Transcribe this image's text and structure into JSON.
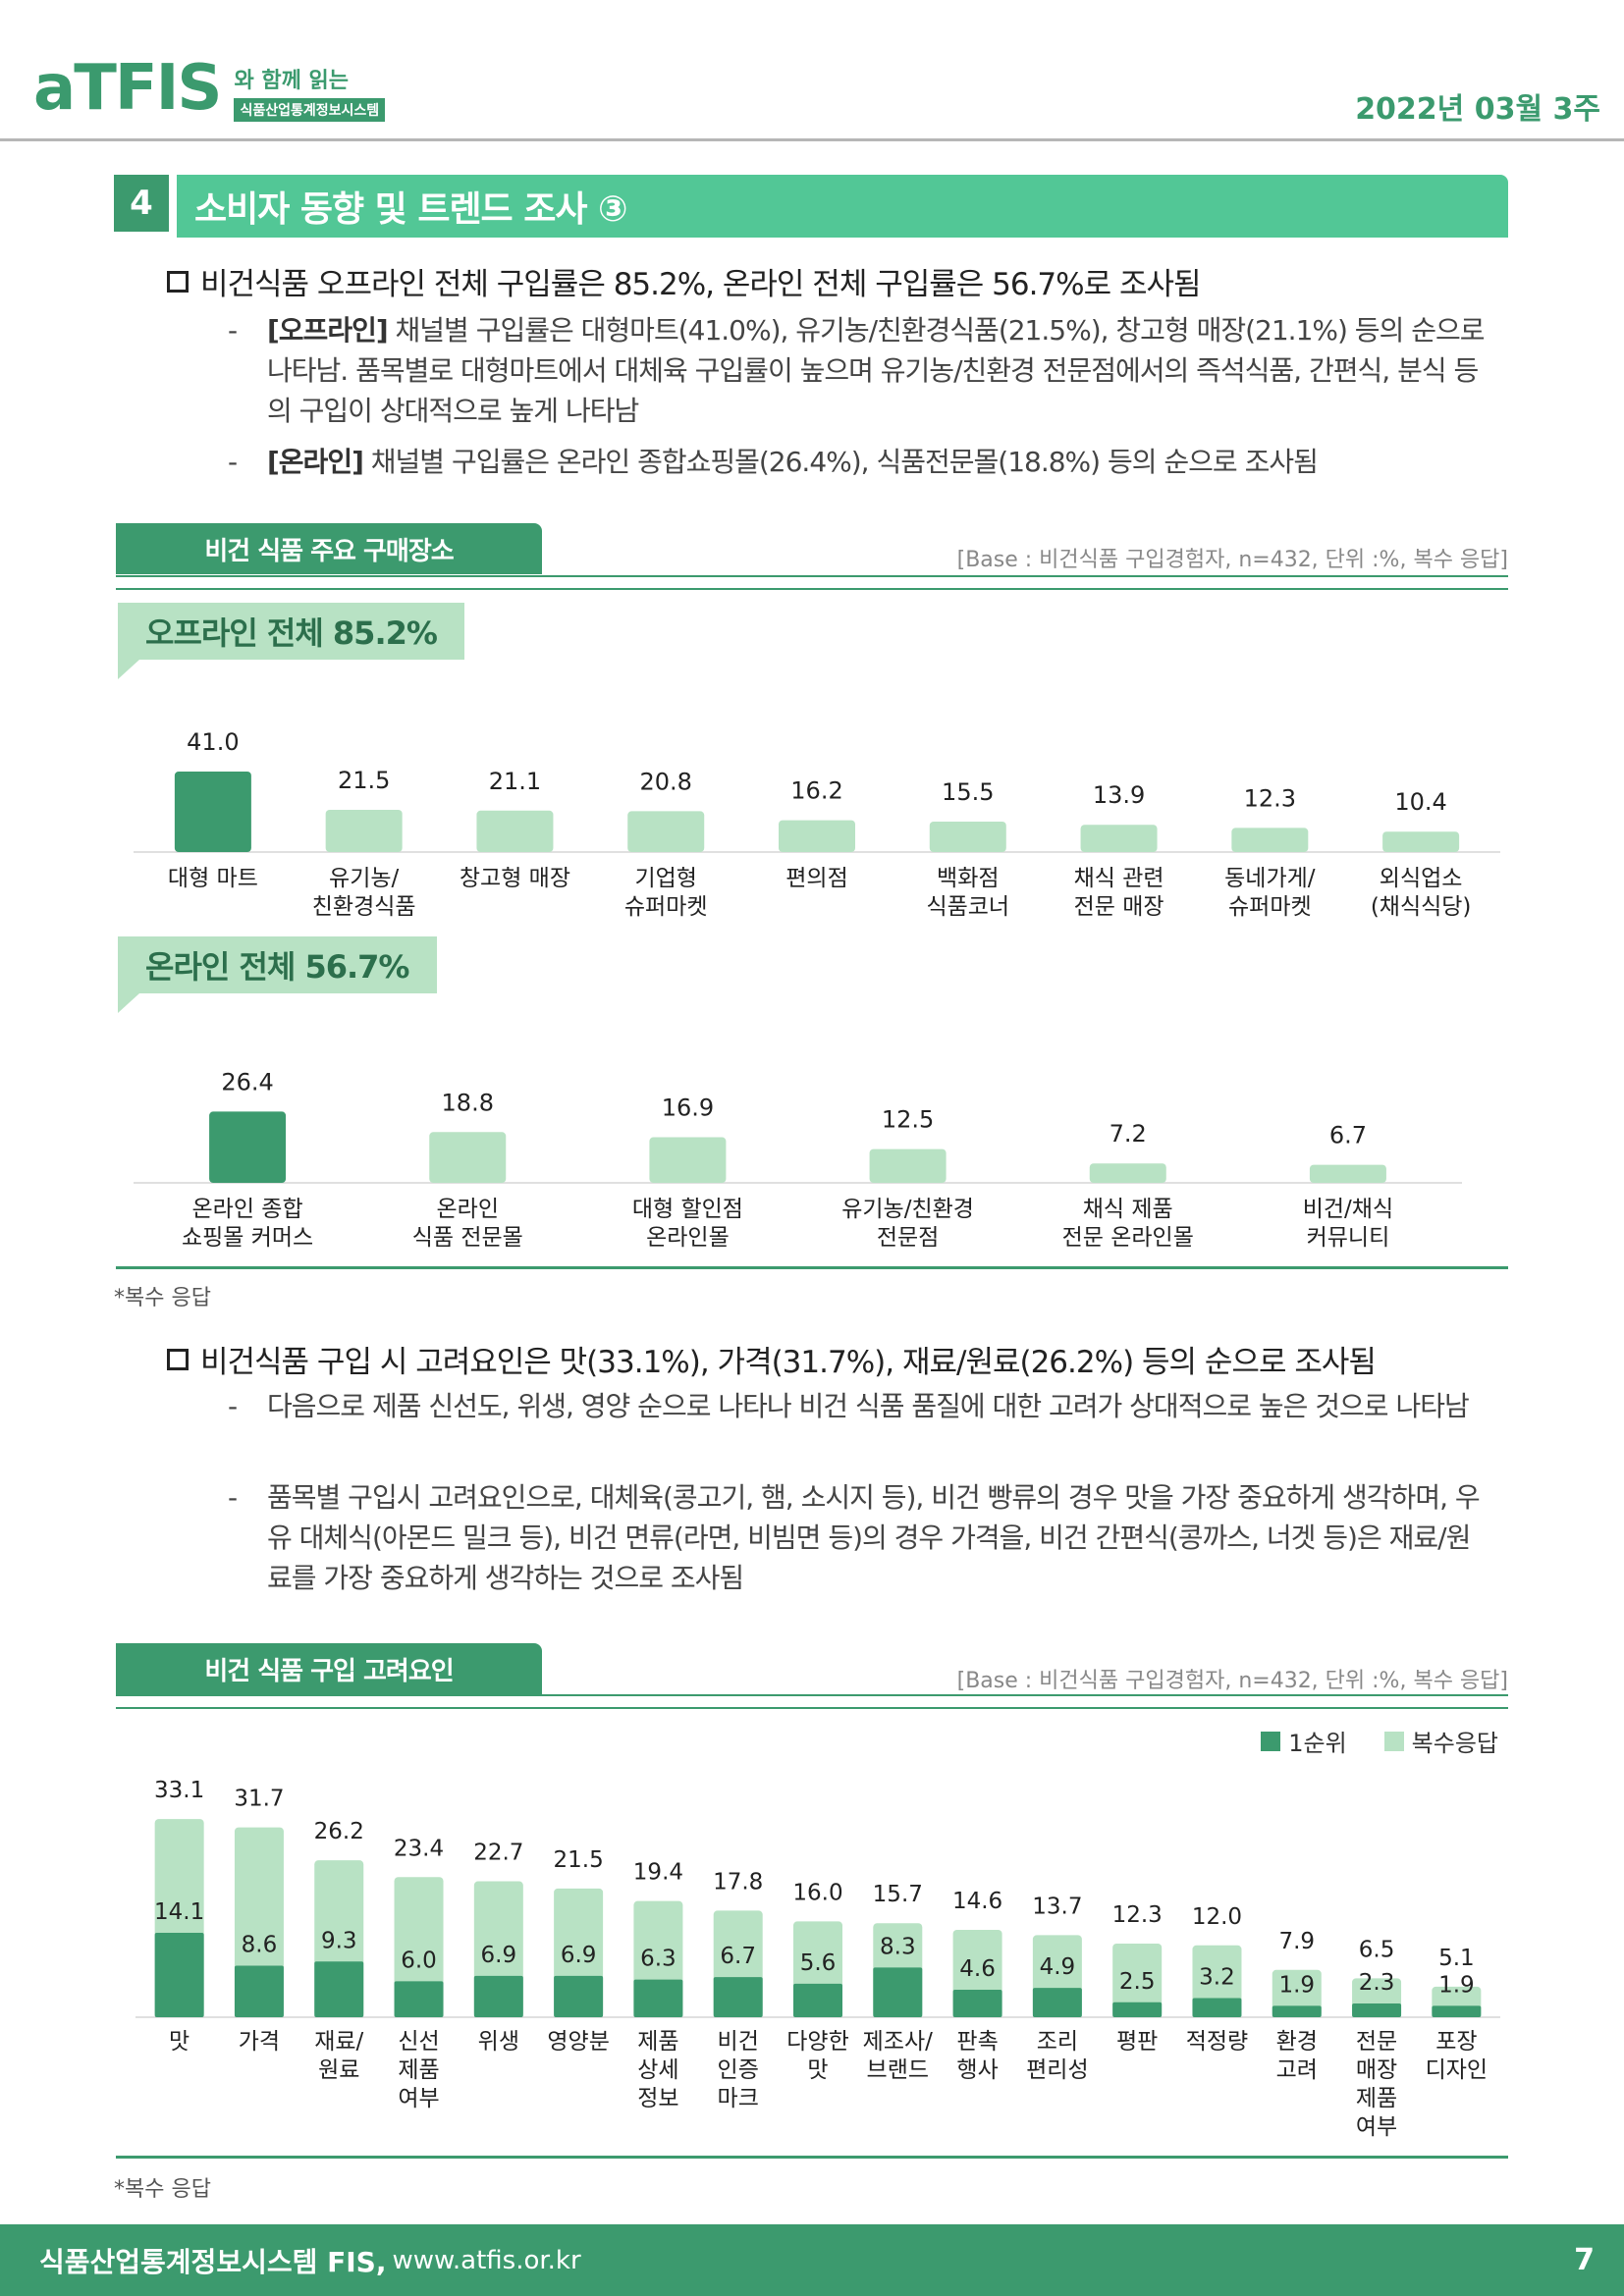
{
  "header": {
    "logo": "aTFIS",
    "logo_tagline": "와 함께 읽는",
    "logo_subtitle": "식품산업통계정보시스템",
    "issue_date": "2022년 03월 3주"
  },
  "section": {
    "number": "4",
    "title": "소비자 동향 및 트렌드 조사 ③"
  },
  "summary1": {
    "headline": "비건식품 오프라인 전체 구입률은 85.2%, 온라인 전체 구입률은 56.7%로 조사됨",
    "items": [
      {
        "tag": "[오프라인]",
        "text": " 채널별 구입률은 대형마트(41.0%), 유기농/친환경식품(21.5%), 창고형 매장(21.1%) 등의 순으로 나타남. 품목별로 대형마트에서 대체육 구입률이 높으며 유기농/친환경 전문점에서의 즉석식품, 간편식, 분식 등의 구입이 상대적으로 높게 나타남"
      },
      {
        "tag": "[온라인]",
        "text": " 채널별 구입률은 온라인 종합쇼핑몰(26.4%), 식품전문몰(18.8%) 등의 순으로 조사됨"
      }
    ]
  },
  "panel1": {
    "title": "비건 식품 주요 구매장소",
    "base": "[Base : 비건식품 구입경험자, n=432, 단위 :%, 복수 응답]",
    "footnote": "*복수 응답"
  },
  "summary2": {
    "headline": "비건식품 구입 시 고려요인은 맛(33.1%), 가격(31.7%), 재료/원료(26.2%) 등의 순으로 조사됨",
    "items": [
      {
        "text": "다음으로 제품 신선도, 위생, 영양 순으로 나타나 비건 식품 품질에 대한 고려가 상대적으로 높은 것으로 나타남"
      },
      {
        "text": "품목별 구입시 고려요인으로, 대체육(콩고기, 햄, 소시지 등), 비건 빵류의 경우 맛을 가장 중요하게 생각하며, 우유 대체식(아몬드 밀크 등), 비건 면류(라면, 비빔면 등)의 경우 가격을, 비건 간편식(콩까스, 너겟 등)은 재료/원료를 가장 중요하게 생각하는 것으로 조사됨"
      }
    ]
  },
  "panel2": {
    "title": "비건 식품 구입 고려요인",
    "base": "[Base : 비건식품 구입경험자, n=432, 단위 :%, 복수 응답]",
    "legend": [
      "1순위",
      "복수응답"
    ],
    "footnote": "*복수 응답"
  },
  "colors": {
    "dark": "#3c9a6e",
    "light": "#b8e2c4",
    "accent": "#52c796"
  },
  "chart_data": [
    {
      "type": "bar",
      "title": "오프라인 전체 85.2%",
      "categories": [
        "대형 마트",
        "유기농/\n친환경식품",
        "창고형 매장",
        "기업형\n슈퍼마켓",
        "편의점",
        "백화점\n식품코너",
        "채식 관련\n전문 매장",
        "동네가게/\n슈퍼마켓",
        "외식업소\n(채식식당)"
      ],
      "values": [
        41.0,
        21.5,
        21.1,
        20.8,
        16.2,
        15.5,
        13.9,
        12.3,
        10.4
      ],
      "value_labels": [
        "41.0",
        "21.5",
        "21.1",
        "20.8",
        "16.2",
        "15.5",
        "13.9",
        "12.3",
        "10.4"
      ]
    },
    {
      "type": "bar",
      "title": "온라인 전체 56.7%",
      "categories": [
        "온라인 종합\n쇼핑몰 커머스",
        "온라인\n식품 전문몰",
        "대형 할인점\n온라인몰",
        "유기농/친환경\n전문점",
        "채식 제품\n전문 온라인몰",
        "비건/채식\n커뮤니티"
      ],
      "values": [
        26.4,
        18.8,
        16.9,
        12.5,
        7.2,
        6.7
      ],
      "value_labels": [
        "26.4",
        "18.8",
        "16.9",
        "12.5",
        "7.2",
        "6.7"
      ]
    },
    {
      "type": "bar",
      "categories": [
        "맛",
        "가격",
        "재료/\n원료",
        "신선\n제품\n여부",
        "위생",
        "영양분",
        "제품\n상세\n정보",
        "비건\n인증\n마크",
        "다양한\n맛",
        "제조사/\n브랜드",
        "판촉\n행사",
        "조리\n편리성",
        "평판",
        "적정량",
        "환경\n고려",
        "전문\n매장\n제품\n여부",
        "포장\n디자인"
      ],
      "series": [
        {
          "name": "1순위",
          "values": [
            14.1,
            8.6,
            9.3,
            6.0,
            6.9,
            6.9,
            6.3,
            6.7,
            5.6,
            8.3,
            4.6,
            4.9,
            2.5,
            3.2,
            1.9,
            2.3,
            1.9
          ],
          "value_labels": [
            "14.1",
            "8.6",
            "9.3",
            "6.0",
            "6.9",
            "6.9",
            "6.3",
            "6.7",
            "5.6",
            "8.3",
            "4.6",
            "4.9",
            "2.5",
            "3.2",
            "1.9",
            "2.3",
            "1.9"
          ]
        },
        {
          "name": "복수응답",
          "values": [
            33.1,
            31.7,
            26.2,
            23.4,
            22.7,
            21.5,
            19.4,
            17.8,
            16.0,
            15.7,
            14.6,
            13.7,
            12.3,
            12.0,
            7.9,
            6.5,
            5.1
          ],
          "value_labels": [
            "33.1",
            "31.7",
            "26.2",
            "23.4",
            "22.7",
            "21.5",
            "19.4",
            "17.8",
            "16.0",
            "15.7",
            "14.6",
            "13.7",
            "12.3",
            "12.0",
            "7.9",
            "6.5",
            "5.1"
          ]
        }
      ]
    }
  ],
  "footer": {
    "site": "식품산업통계정보시스템 FIS,",
    "url": "www.atfis.or.kr",
    "page": "7"
  }
}
